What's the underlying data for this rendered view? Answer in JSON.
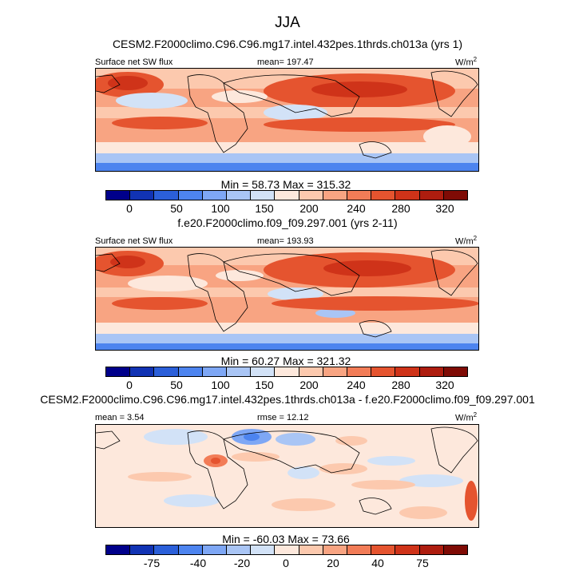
{
  "figure": {
    "title": "JJA"
  },
  "panels": [
    {
      "title": "CESM2.F2000climo.C96.C96.mg17.intel.432pes.1thrds.ch013a (yrs 1)",
      "left_label": "Surface net SW flux",
      "center_label": "mean= 197.47",
      "units": "W/m",
      "units_sup": "2",
      "minmax": "Min =  58.73 Max = 315.32",
      "colorbar_ticks": [
        "0",
        "50",
        "100",
        "150",
        "200",
        "240",
        "280",
        "320"
      ]
    },
    {
      "title": "f.e20.F2000climo.f09_f09.297.001 (yrs 2-11)",
      "left_label": "Surface net SW flux",
      "center_label": "mean= 193.93",
      "units": "W/m",
      "units_sup": "2",
      "minmax": "Min =  60.27 Max = 321.32",
      "colorbar_ticks": [
        "0",
        "50",
        "100",
        "150",
        "200",
        "240",
        "280",
        "320"
      ]
    },
    {
      "title": "CESM2.F2000climo.C96.C96.mg17.intel.432pes.1thrds.ch013a - f.e20.F2000climo.f09_f09.297.001",
      "left_label": "mean =   3.54",
      "center_label": "rmse =  12.12",
      "units": "W/m",
      "units_sup": "2",
      "minmax": "Min = -60.03 Max =  73.66",
      "colorbar_ticks": [
        "-75",
        "-40",
        "-20",
        "0",
        "20",
        "40",
        "75"
      ]
    }
  ],
  "colorbar_colors": [
    "#00008b",
    "#1133b4",
    "#2b5fd9",
    "#4d84ef",
    "#7ea7f5",
    "#a9c5f5",
    "#d2e2f7",
    "#fde8dc",
    "#fcc9ae",
    "#f8a482",
    "#f27c57",
    "#e5542f",
    "#cf3319",
    "#ae1d0f",
    "#7f0b05"
  ],
  "chart_data": [
    {
      "type": "heatmap",
      "title": "CESM2.F2000climo.C96.C96.mg17.intel.432pes.1thrds.ch013a (yrs 1)",
      "variable": "Surface net SW flux",
      "units": "W/m2",
      "mean": 197.47,
      "min": 58.73,
      "max": 315.32,
      "colorbar_ticks": [
        0,
        50,
        100,
        150,
        200,
        240,
        280,
        320
      ]
    },
    {
      "type": "heatmap",
      "title": "f.e20.F2000climo.f09_f09.297.001 (yrs 2-11)",
      "variable": "Surface net SW flux",
      "units": "W/m2",
      "mean": 193.93,
      "min": 60.27,
      "max": 321.32,
      "colorbar_ticks": [
        0,
        50,
        100,
        150,
        200,
        240,
        280,
        320
      ]
    },
    {
      "type": "heatmap",
      "title": "CESM2.F2000climo.C96.C96.mg17.intel.432pes.1thrds.ch013a - f.e20.F2000climo.f09_f09.297.001",
      "units": "W/m2",
      "mean": 3.54,
      "rmse": 12.12,
      "min": -60.03,
      "max": 73.66,
      "colorbar_ticks": [
        -75,
        -40,
        -20,
        0,
        20,
        40,
        75
      ]
    }
  ]
}
